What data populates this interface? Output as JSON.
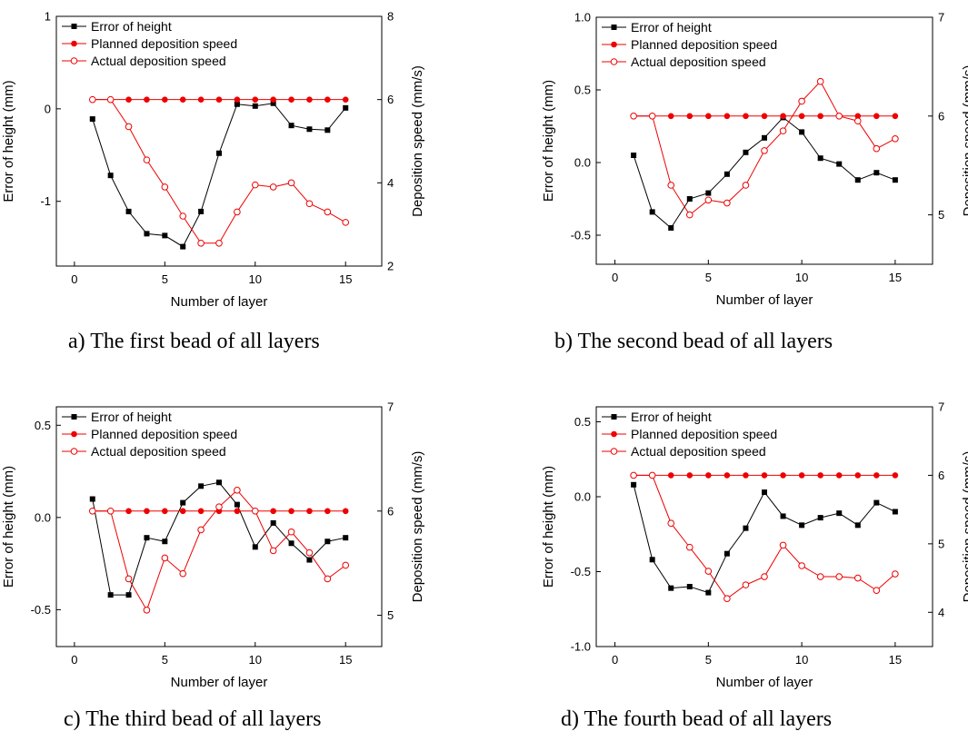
{
  "colors": {
    "error": "#000000",
    "planned": "#ee0000",
    "actual": "#ee0000",
    "axis": "#000000"
  },
  "chart_data": [
    {
      "type": "line",
      "caption": "a) The first bead of all layers",
      "xlabel": "Number of layer",
      "ylabel": "Error of height (mm)",
      "y2label": "Deposition speed (mm/s)",
      "xlim": [
        -1,
        17
      ],
      "ylim": [
        -1.7,
        1
      ],
      "y2lim": [
        2,
        8
      ],
      "xticks": [
        0,
        5,
        10,
        15
      ],
      "yticks": [
        -1,
        0,
        1
      ],
      "yticklabels": [
        "-1",
        "0",
        "1"
      ],
      "y2ticks": [
        2,
        4,
        6,
        8
      ],
      "y2ticklabels": [
        "2",
        "4",
        "6",
        "8"
      ],
      "legend": [
        "Error of height",
        "Planned deposition speed",
        "Actual deposition speed"
      ],
      "x": [
        1,
        2,
        3,
        4,
        5,
        6,
        7,
        8,
        9,
        10,
        11,
        12,
        13,
        14,
        15
      ],
      "series": [
        {
          "name": "Error of height",
          "axis": "left",
          "marker": "square",
          "values": [
            -0.11,
            -0.72,
            -1.11,
            -1.35,
            -1.37,
            -1.49,
            -1.11,
            -0.48,
            0.05,
            0.03,
            0.06,
            -0.18,
            -0.22,
            -0.23,
            0.01
          ]
        },
        {
          "name": "Planned deposition speed",
          "axis": "right",
          "marker": "filled-circle",
          "values": [
            6,
            6,
            6,
            6,
            6,
            6,
            6,
            6,
            6,
            6,
            6,
            6,
            6,
            6,
            6
          ]
        },
        {
          "name": "Actual deposition speed",
          "axis": "right",
          "marker": "open-circle",
          "values": [
            6,
            6,
            5.35,
            4.55,
            3.9,
            3.2,
            2.55,
            2.55,
            3.3,
            3.95,
            3.9,
            4.0,
            3.5,
            3.3,
            3.05
          ]
        }
      ]
    },
    {
      "type": "line",
      "caption": "b) The second bead of all layers",
      "xlabel": "Number of layer",
      "ylabel": "Error of height (mm)",
      "y2label": "Deposition speed (mm/s)",
      "xlim": [
        -1,
        17
      ],
      "ylim": [
        -0.7,
        1.0
      ],
      "y2lim": [
        4.5,
        7
      ],
      "xticks": [
        0,
        5,
        10,
        15
      ],
      "yticks": [
        -0.5,
        0,
        0.5,
        1.0
      ],
      "yticklabels": [
        "-0.5",
        "0.0",
        "0.5",
        "1.0"
      ],
      "y2ticks": [
        5,
        6,
        7
      ],
      "y2ticklabels": [
        "5",
        "6",
        "7"
      ],
      "legend": [
        "Error of height",
        "Planned deposition speed",
        "Actual deposition speed"
      ],
      "x": [
        1,
        2,
        3,
        4,
        5,
        6,
        7,
        8,
        9,
        10,
        11,
        12,
        13,
        14,
        15
      ],
      "series": [
        {
          "name": "Error of height",
          "axis": "left",
          "marker": "square",
          "values": [
            0.05,
            -0.34,
            -0.45,
            -0.25,
            -0.21,
            -0.08,
            0.07,
            0.17,
            0.31,
            0.21,
            0.03,
            -0.01,
            -0.12,
            -0.07,
            -0.12
          ]
        },
        {
          "name": "Planned deposition speed",
          "axis": "right",
          "marker": "filled-circle",
          "values": [
            6,
            6,
            6,
            6,
            6,
            6,
            6,
            6,
            6,
            6,
            6,
            6,
            6,
            6,
            6
          ]
        },
        {
          "name": "Actual deposition speed",
          "axis": "right",
          "marker": "open-circle",
          "values": [
            6,
            6,
            5.3,
            5.0,
            5.15,
            5.12,
            5.3,
            5.65,
            5.85,
            6.15,
            6.35,
            6.0,
            5.95,
            5.67,
            5.77
          ]
        }
      ]
    },
    {
      "type": "line",
      "caption": "c) The third bead of all layers",
      "xlabel": "Number of layer",
      "ylabel": "Error of height (mm)",
      "y2label": "Deposition speed (mm/s)",
      "xlim": [
        -1,
        17
      ],
      "ylim": [
        -0.7,
        0.6
      ],
      "y2lim": [
        4.7,
        7
      ],
      "xticks": [
        0,
        5,
        10,
        15
      ],
      "yticks": [
        -0.5,
        0,
        0.5
      ],
      "yticklabels": [
        "-0.5",
        "0.0",
        "0.5"
      ],
      "y2ticks": [
        5,
        6,
        7
      ],
      "y2ticklabels": [
        "5",
        "6",
        "7"
      ],
      "legend": [
        "Error of height",
        "Planned deposition speed",
        "Actual deposition speed"
      ],
      "x": [
        1,
        2,
        3,
        4,
        5,
        6,
        7,
        8,
        9,
        10,
        11,
        12,
        13,
        14,
        15
      ],
      "series": [
        {
          "name": "Error of height",
          "axis": "left",
          "marker": "square",
          "values": [
            0.1,
            -0.42,
            -0.42,
            -0.11,
            -0.13,
            0.08,
            0.17,
            0.19,
            0.07,
            -0.16,
            -0.03,
            -0.14,
            -0.23,
            -0.13,
            -0.11
          ]
        },
        {
          "name": "Planned deposition speed",
          "axis": "right",
          "marker": "filled-circle",
          "values": [
            6,
            6,
            6,
            6,
            6,
            6,
            6,
            6,
            6,
            6,
            6,
            6,
            6,
            6,
            6
          ]
        },
        {
          "name": "Actual deposition speed",
          "axis": "right",
          "marker": "open-circle",
          "values": [
            6,
            6,
            5.35,
            5.05,
            5.55,
            5.4,
            5.82,
            6.04,
            6.2,
            6.0,
            5.62,
            5.8,
            5.6,
            5.35,
            5.48
          ]
        }
      ]
    },
    {
      "type": "line",
      "caption": "d) The fourth bead of all layers",
      "xlabel": "Number of layer",
      "ylabel": "Error of height (mm)",
      "y2label": "Deposition speed (mm/s)",
      "xlim": [
        -1,
        17
      ],
      "ylim": [
        -1.0,
        0.6
      ],
      "y2lim": [
        3.5,
        7
      ],
      "xticks": [
        0,
        5,
        10,
        15
      ],
      "yticks": [
        -1.0,
        -0.5,
        0,
        0.5
      ],
      "yticklabels": [
        "-1.0",
        "-0.5",
        "0.0",
        "0.5"
      ],
      "y2ticks": [
        4,
        5,
        6,
        7
      ],
      "y2ticklabels": [
        "4",
        "5",
        "6",
        "7"
      ],
      "legend": [
        "Error of height",
        "Planned deposition speed",
        "Actual deposition speed"
      ],
      "x": [
        1,
        2,
        3,
        4,
        5,
        6,
        7,
        8,
        9,
        10,
        11,
        12,
        13,
        14,
        15
      ],
      "series": [
        {
          "name": "Error of height",
          "axis": "left",
          "marker": "square",
          "values": [
            0.08,
            -0.42,
            -0.61,
            -0.6,
            -0.64,
            -0.38,
            -0.21,
            0.03,
            -0.13,
            -0.19,
            -0.14,
            -0.11,
            -0.19,
            -0.04,
            -0.1
          ]
        },
        {
          "name": "Planned deposition speed",
          "axis": "right",
          "marker": "filled-circle",
          "values": [
            6,
            6,
            6,
            6,
            6,
            6,
            6,
            6,
            6,
            6,
            6,
            6,
            6,
            6,
            6
          ]
        },
        {
          "name": "Actual deposition speed",
          "axis": "right",
          "marker": "open-circle",
          "values": [
            6,
            6,
            5.3,
            4.95,
            4.6,
            4.2,
            4.4,
            4.52,
            4.98,
            4.68,
            4.52,
            4.52,
            4.5,
            4.32,
            4.56
          ]
        }
      ]
    }
  ]
}
